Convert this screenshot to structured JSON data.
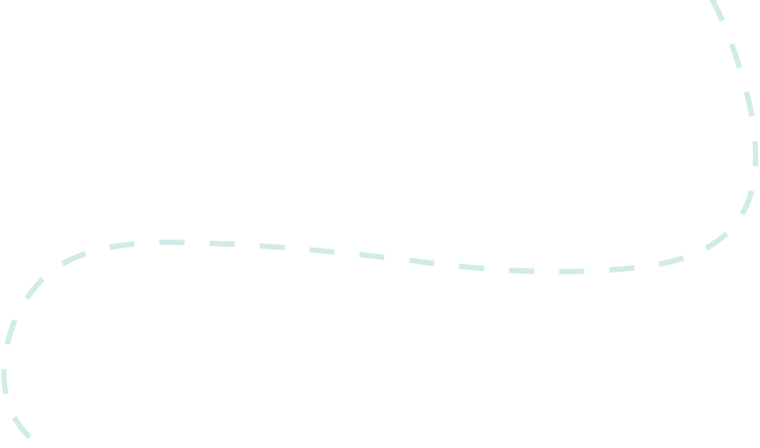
{
  "background_color": "#ffffff",
  "curve": {
    "stroke_color": "#d0ebe8",
    "style": "dashed"
  }
}
